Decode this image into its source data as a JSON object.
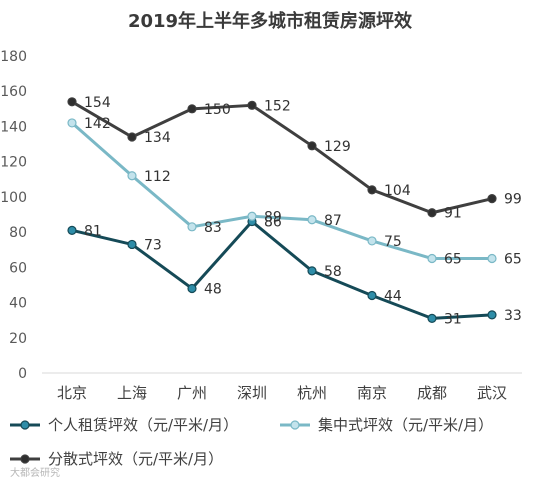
{
  "chart_data": {
    "type": "line",
    "title": "2019年上半年多城市租赁房源坪效",
    "xlabel": "",
    "ylabel": "",
    "ylim": [
      0,
      180
    ],
    "yticks": [
      0,
      20,
      40,
      60,
      80,
      100,
      120,
      140,
      160,
      180
    ],
    "grid": false,
    "legend_position": "bottom",
    "categories": [
      "北京",
      "上海",
      "广州",
      "深圳",
      "杭州",
      "南京",
      "成都",
      "武汉"
    ],
    "series": [
      {
        "name": "个人租赁坪效（元/平米/月）",
        "values": [
          81,
          73,
          48,
          86,
          58,
          44,
          31,
          33
        ],
        "color": "#154a57",
        "marker": "#2e8da8"
      },
      {
        "name": "集中式坪效（元/平米/月）",
        "values": [
          142,
          112,
          83,
          89,
          87,
          75,
          65,
          65
        ],
        "color": "#7ab8c6",
        "marker": "#c3e3ec"
      },
      {
        "name": "分散式坪效（元/平米/月）",
        "values": [
          154,
          134,
          150,
          152,
          129,
          104,
          91,
          99
        ],
        "color": "#3f3f3f",
        "marker": "#2f2f2f"
      }
    ]
  },
  "watermark": "大都会研究"
}
